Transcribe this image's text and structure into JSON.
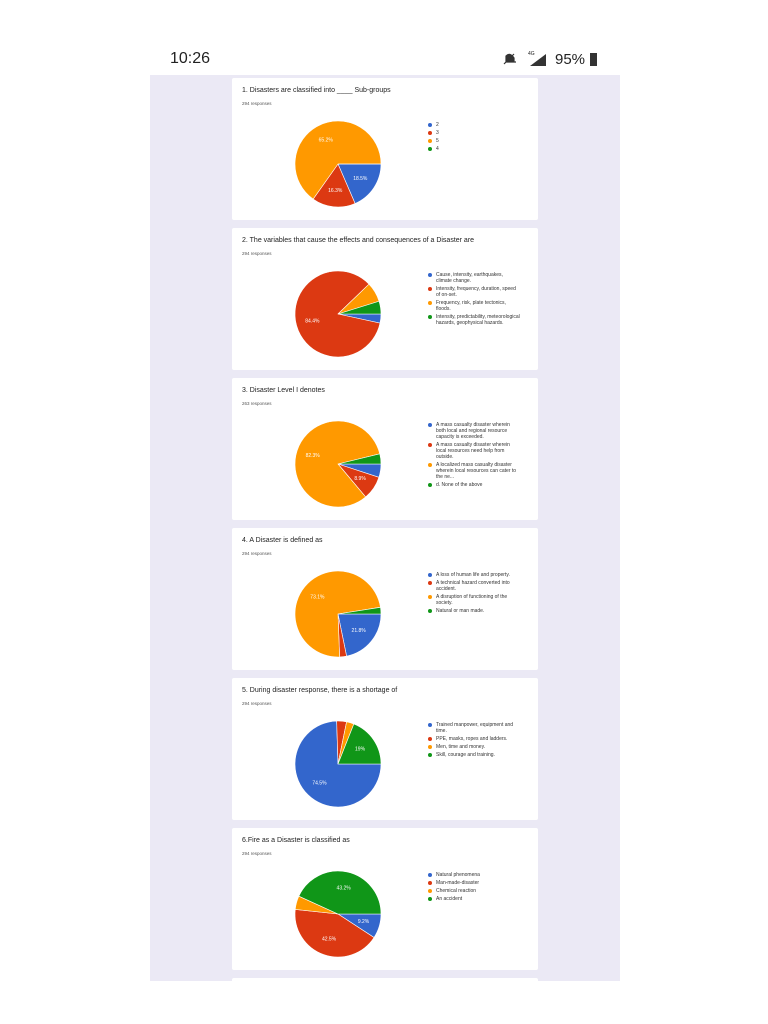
{
  "status_bar": {
    "time": "10:26",
    "network": "4G",
    "battery": "95%"
  },
  "chart_data": [
    {
      "type": "pie",
      "title": "1. Disasters are classified into ____ Sub-groups",
      "subtitle": "294 responses",
      "series": [
        {
          "name": "2",
          "color": "#3366cc"
        },
        {
          "name": "3",
          "color": "#dc3912"
        },
        {
          "name": "5",
          "color": "#ff9900"
        },
        {
          "name": "4",
          "color": "#109618"
        }
      ],
      "values": [
        18.5,
        16.3,
        65.2,
        0
      ],
      "value_labels": [
        "18.5%",
        "16.3%",
        "65.2%",
        null
      ]
    },
    {
      "type": "pie",
      "title": "2. The variables that cause the effects and consequences of a Disaster are",
      "subtitle": "294 responses",
      "series": [
        {
          "name": "Cause, intensity, earthquakes, climate change.",
          "color": "#3366cc"
        },
        {
          "name": "Intensity, frequency, duration, speed of on-set.",
          "color": "#dc3912"
        },
        {
          "name": "Frequency, risk, plate tectonics, floods.",
          "color": "#ff9900"
        },
        {
          "name": "Intensity, predictability, meteorological hazards, geophysical hazards.",
          "color": "#109618"
        }
      ],
      "values": [
        3.4,
        84.4,
        7.4,
        4.8
      ],
      "value_labels": [
        null,
        "84.4%",
        null,
        null
      ]
    },
    {
      "type": "pie",
      "title": "3. Disaster Level I denotes",
      "subtitle": "263 responses",
      "series": [
        {
          "name": "A mass casualty disaster wherein both local and regional resource capacity is exceeded.",
          "color": "#3366cc"
        },
        {
          "name": "A mass casualty disaster wherein local resources need help from outside.",
          "color": "#dc3912"
        },
        {
          "name": "A localized mass casualty disaster wherein local resources can cater to the ne...",
          "color": "#ff9900"
        },
        {
          "name": "d. None of the above",
          "color": "#109618"
        }
      ],
      "values": [
        5,
        8.9,
        82.3,
        3.8
      ],
      "value_labels": [
        null,
        "8.9%",
        "82.3%",
        null
      ]
    },
    {
      "type": "pie",
      "title": "4. A Disaster is defined as",
      "subtitle": "294 responses",
      "series": [
        {
          "name": "A loss of human life and property.",
          "color": "#3366cc"
        },
        {
          "name": "A technical hazard converted into accident.",
          "color": "#dc3912"
        },
        {
          "name": "A disruption of functioning of the society.",
          "color": "#ff9900"
        },
        {
          "name": "Natural or man made.",
          "color": "#109618"
        }
      ],
      "values": [
        21.8,
        2.6,
        73.1,
        2.5
      ],
      "value_labels": [
        "21.8%",
        null,
        "73.1%",
        null
      ]
    },
    {
      "type": "pie",
      "title": "5. During disaster response, there is a shortage of",
      "subtitle": "294 responses",
      "series": [
        {
          "name": "Trained manpower, equipment and time.",
          "color": "#3366cc"
        },
        {
          "name": "PPE, masks, ropes and ladders.",
          "color": "#dc3912"
        },
        {
          "name": "Men, time and money.",
          "color": "#ff9900"
        },
        {
          "name": "Skill, courage and training.",
          "color": "#109618"
        }
      ],
      "values": [
        74.5,
        3.7,
        2.8,
        19
      ],
      "value_labels": [
        "74.5%",
        null,
        null,
        "19%"
      ]
    },
    {
      "type": "pie",
      "title": "6.Fire as a Disaster is classified as",
      "subtitle": "294 responses",
      "series": [
        {
          "name": "Natural phenomena",
          "color": "#3366cc"
        },
        {
          "name": "Man-made-disaster",
          "color": "#dc3912"
        },
        {
          "name": "Chemical reaction",
          "color": "#ff9900"
        },
        {
          "name": "An accident",
          "color": "#109618"
        }
      ],
      "values": [
        9.2,
        42.5,
        5.1,
        43.2
      ],
      "value_labels": [
        "9.2%",
        "42.5%",
        null,
        "43.2%"
      ]
    }
  ]
}
